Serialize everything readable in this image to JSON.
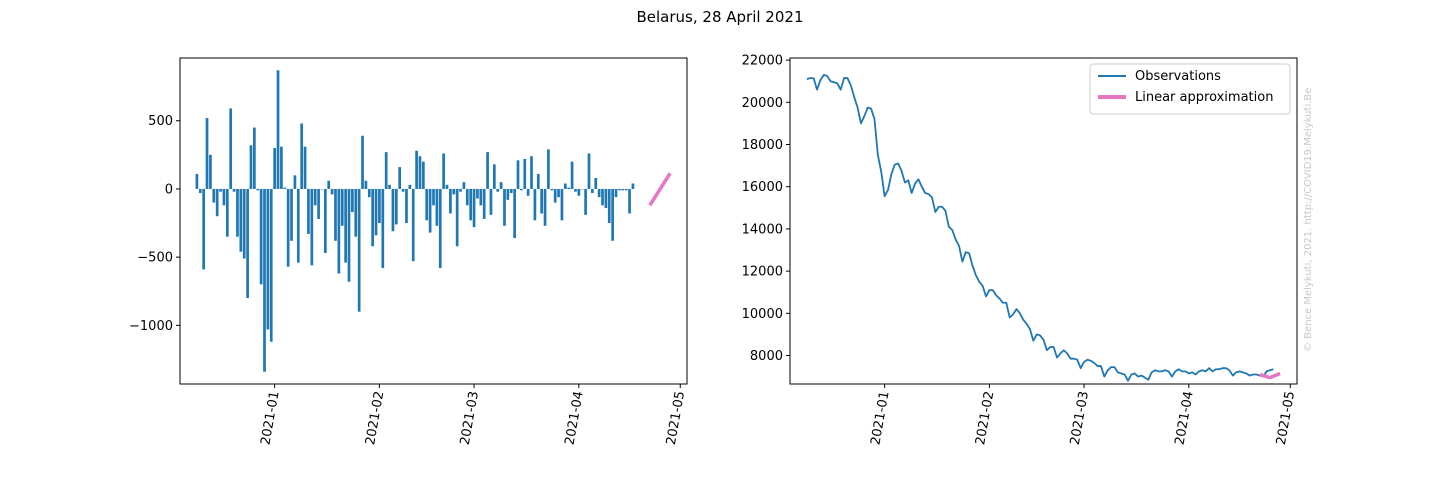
{
  "title": "Belarus, 28 April 2021",
  "credit": "© Bence Melykuti, 2021. http://COVID19.Melykuti.Be",
  "colors": {
    "bars": "#1f77b4",
    "observations": "#1f77b4",
    "linear": "#e377c2"
  },
  "chart_data": [
    {
      "type": "bar",
      "x_start": "2020-12-09",
      "x_end": "2021-04-28",
      "xticks": [
        "2021-01",
        "2021-02",
        "2021-03",
        "2021-04",
        "2021-05"
      ],
      "xticks_dates": [
        "2021-01-01",
        "2021-02-01",
        "2021-03-01",
        "2021-04-01",
        "2021-05-01"
      ],
      "yticks": [
        -1000,
        -500,
        0,
        500
      ],
      "ylim": [
        -1430,
        960
      ],
      "values": [
        110,
        -30,
        -590,
        520,
        250,
        -100,
        -200,
        -20,
        -120,
        -350,
        590,
        -20,
        -350,
        -460,
        -510,
        -800,
        320,
        450,
        -10,
        -700,
        -1340,
        -1030,
        -1120,
        300,
        870,
        310,
        10,
        -570,
        -380,
        100,
        -540,
        480,
        310,
        -330,
        -560,
        -120,
        -220,
        0,
        -470,
        60,
        -40,
        -380,
        -620,
        -270,
        -540,
        -680,
        -170,
        -350,
        -900,
        390,
        60,
        -60,
        -420,
        -340,
        -250,
        -580,
        270,
        30,
        -310,
        -260,
        160,
        -20,
        -250,
        30,
        -530,
        280,
        240,
        200,
        -230,
        -320,
        -120,
        -270,
        -580,
        260,
        30,
        -180,
        -40,
        -420,
        -20,
        50,
        -120,
        -230,
        -280,
        -70,
        -120,
        -220,
        270,
        -190,
        180,
        -20,
        50,
        -270,
        -80,
        -30,
        -360,
        210,
        -10,
        220,
        -50,
        240,
        -230,
        110,
        -180,
        -270,
        290,
        -10,
        -100,
        -60,
        -230,
        40,
        10,
        200,
        -20,
        -50,
        0,
        -190,
        260,
        -30,
        80,
        -60,
        -120,
        -140,
        -250,
        -380,
        -60,
        -10,
        -10,
        -10,
        -180,
        40
      ],
      "series": [
        {
          "name": "Observations",
          "values": []
        }
      ]
    },
    {
      "type": "line",
      "x_start": "2020-12-09",
      "x_end": "2021-04-28",
      "xticks": [
        "2021-01",
        "2021-02",
        "2021-03",
        "2021-04",
        "2021-05"
      ],
      "xticks_dates": [
        "2021-01-01",
        "2021-02-01",
        "2021-03-01",
        "2021-04-01",
        "2021-05-01"
      ],
      "yticks": [
        8000,
        10000,
        12000,
        14000,
        16000,
        18000,
        20000,
        22000
      ],
      "ylim": [
        6650,
        22100
      ],
      "series": [
        {
          "name": "Observations",
          "values": [
            21100,
            21150,
            21140,
            20600,
            21050,
            21300,
            21250,
            21000,
            20950,
            20900,
            20600,
            21150,
            21150,
            20800,
            20250,
            19750,
            19000,
            19350,
            19750,
            19700,
            19200,
            17500,
            16700,
            15550,
            15850,
            16600,
            17050,
            17100,
            16750,
            16200,
            16300,
            15700,
            16150,
            16350,
            16000,
            15700,
            15650,
            15500,
            14800,
            15050,
            15050,
            14850,
            14100,
            13950,
            13500,
            13200,
            12450,
            12900,
            12850,
            12250,
            11800,
            11500,
            11300,
            10800,
            11100,
            11100,
            10850,
            10700,
            10500,
            10500,
            9800,
            9950,
            10200,
            10000,
            9700,
            9500,
            9250,
            8700,
            9000,
            8950,
            8750,
            8250,
            8400,
            8400,
            7900,
            8100,
            8250,
            8100,
            7850,
            7850,
            7800,
            7400,
            7700,
            7800,
            7750,
            7650,
            7500,
            7500,
            7000,
            7300,
            7450,
            7450,
            7200,
            7150,
            7100,
            6800,
            7100,
            7150,
            7000,
            7050,
            6950,
            6850,
            7200,
            7300,
            7250,
            7250,
            7300,
            7250,
            7000,
            7250,
            7350,
            7250,
            7250,
            7150,
            7200,
            7100,
            7250,
            7300,
            7250,
            7400,
            7250,
            7350,
            7350,
            7400,
            7400,
            7300,
            7050,
            7200,
            7250,
            7200,
            7150,
            7050,
            7100,
            7100,
            7050,
            7000,
            7250,
            7300,
            7350
          ]
        },
        {
          "name": "Linear approximation",
          "x_start": "2021-04-22",
          "x_end": "2021-04-28",
          "values": [
            7100,
            6950,
            7150
          ]
        }
      ],
      "legend": "top-right"
    }
  ]
}
